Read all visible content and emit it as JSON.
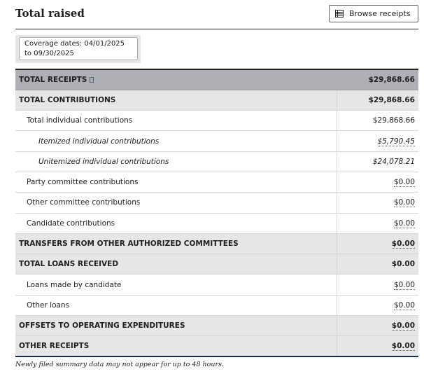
{
  "header": {
    "title": "Total raised",
    "browse_label": "Browse receipts"
  },
  "coverage": {
    "text": "Coverage dates: 04/01/2025 to 09/30/2025"
  },
  "rows": [
    {
      "label": "TOTAL RECEIPTS",
      "value": "$29,868.66"
    },
    {
      "label": "TOTAL CONTRIBUTIONS",
      "value": "$29,868.66"
    },
    {
      "label": "Total individual contributions",
      "value": "$29,868.66"
    },
    {
      "label": "Itemized individual contributions",
      "value": "$5,790.45"
    },
    {
      "label": "Unitemized individual contributions",
      "value": "$24,078.21"
    },
    {
      "label": "Party committee contributions",
      "value": "$0.00"
    },
    {
      "label": "Other committee contributions",
      "value": "$0.00"
    },
    {
      "label": "Candidate contributions",
      "value": "$0.00"
    },
    {
      "label": "TRANSFERS FROM OTHER AUTHORIZED COMMITTEES",
      "value": "$0.00"
    },
    {
      "label": "TOTAL LOANS RECEIVED",
      "value": "$0.00"
    },
    {
      "label": "Loans made by candidate",
      "value": "$0.00"
    },
    {
      "label": "Other loans",
      "value": "$0.00"
    },
    {
      "label": "OFFSETS TO OPERATING EXPENDITURES",
      "value": "$0.00"
    },
    {
      "label": "OTHER RECEIPTS",
      "value": "$0.00"
    }
  ],
  "footnote": "Newly filed summary data may not appear for up to 48 hours.",
  "colors": {
    "header_row": "#aeb0b5",
    "group_row": "#e6e6e6",
    "bottom_rule": "#112e51"
  }
}
